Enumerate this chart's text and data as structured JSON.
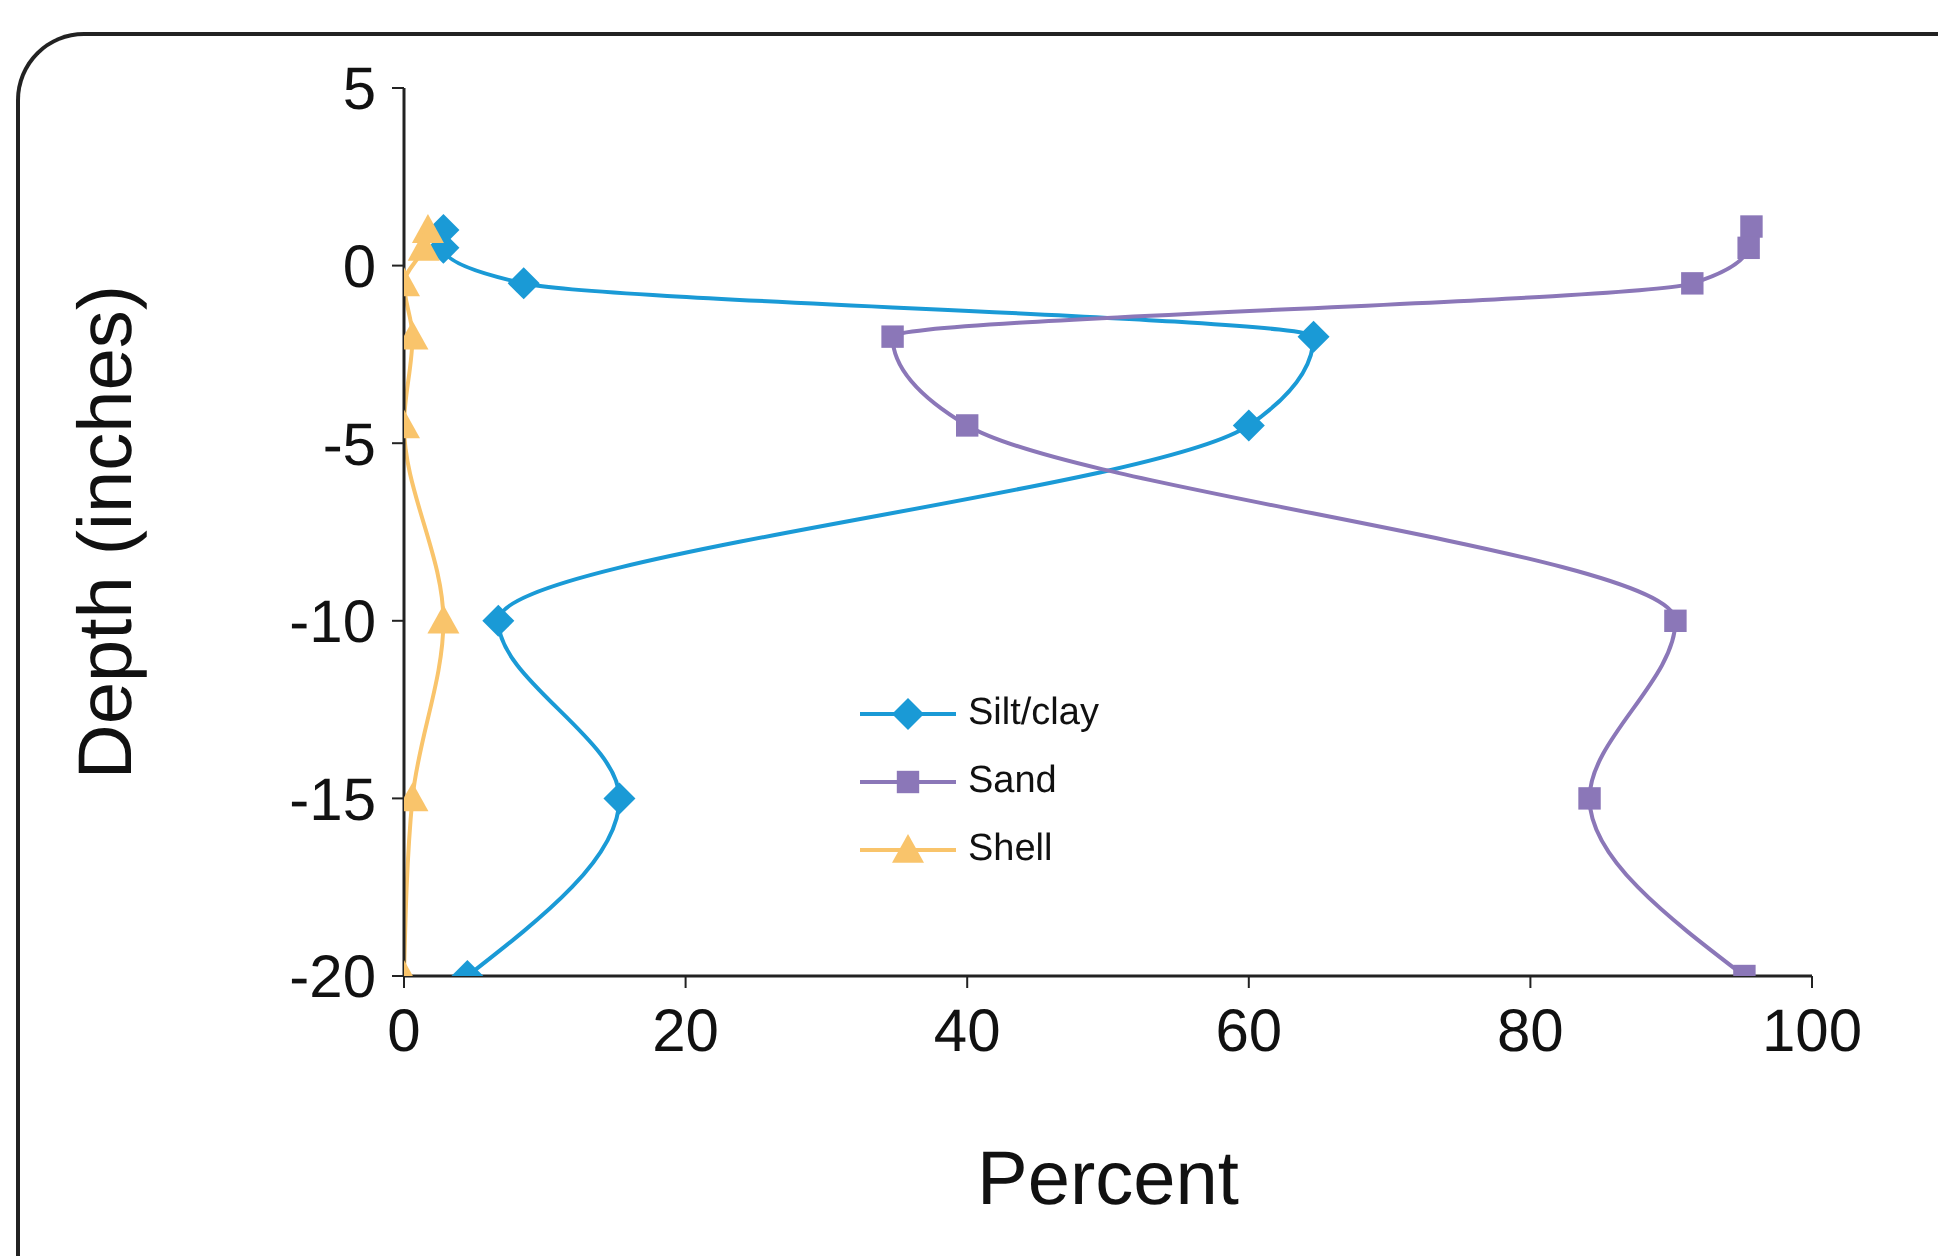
{
  "chart_data": {
    "type": "line",
    "xlabel": "Percent",
    "ylabel": "Depth (inches)",
    "xlim": [
      0,
      100
    ],
    "xticks": [
      0,
      20,
      40,
      60,
      80,
      100
    ],
    "ylim": [
      -20,
      5
    ],
    "yticks": [
      -20,
      -15,
      -10,
      -5,
      0,
      5
    ],
    "legend": "center",
    "line_style": "solid",
    "series": [
      {
        "name": "Silt/clay",
        "color": "#1a9ad6",
        "marker": "diamond",
        "x": [
          2.8,
          2.8,
          8.5,
          64.6,
          60,
          6.7,
          15.3,
          4.5
        ],
        "values": [
          1,
          0.5,
          -0.5,
          -2,
          -4.5,
          -10,
          -15,
          -20
        ]
      },
      {
        "name": "Sand",
        "color": "#8b77b8",
        "marker": "square",
        "x": [
          95.7,
          95.5,
          91.5,
          34.7,
          40,
          90.3,
          84.2,
          95.2
        ],
        "values": [
          1.1,
          0.5,
          -0.5,
          -2,
          -4.5,
          -10,
          -15,
          -20
        ]
      },
      {
        "name": "Shell",
        "color": "#f9c46b",
        "marker": "triangle",
        "x": [
          1.7,
          1.4,
          0,
          0.6,
          0,
          2.8,
          0.6,
          0
        ],
        "values": [
          1,
          0.5,
          -0.5,
          -2,
          -4.5,
          -10,
          -15,
          -20
        ]
      }
    ]
  }
}
